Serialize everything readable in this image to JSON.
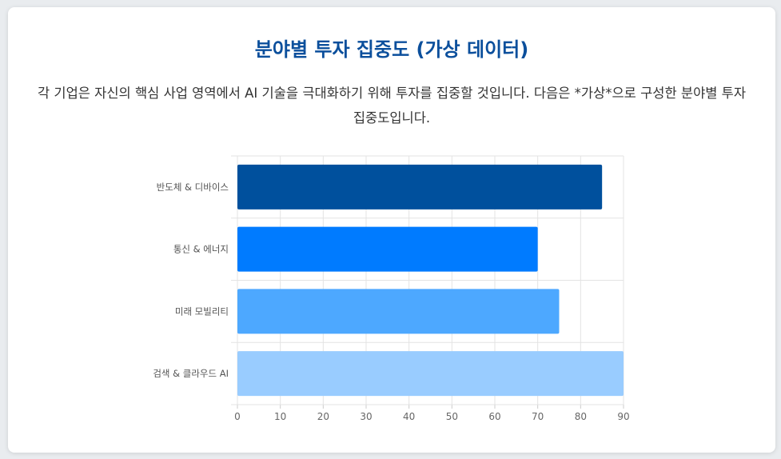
{
  "page": {
    "title": "분야별 투자 집중도 (가상 데이터)",
    "description": "각 기업은 자신의 핵심 사업 영역에서 AI 기술을 극대화하기 위해 투자를 집중할 것입니다. 다음은 *가상*으로 구성한 분야별 투자 집중도입니다."
  },
  "chart_data": {
    "type": "bar",
    "orientation": "horizontal",
    "categories": [
      "반도체 & 디바이스",
      "통신 & 에너지",
      "미래 모빌리티",
      "검색 & 클라우드 AI"
    ],
    "values": [
      85,
      70,
      75,
      90
    ],
    "colors": [
      "#00509d",
      "#007bff",
      "#4da8ff",
      "#99ccff"
    ],
    "xlim": [
      0,
      90
    ],
    "xticks": [
      0,
      10,
      20,
      30,
      40,
      50,
      60,
      70,
      80,
      90
    ],
    "grid": true,
    "title": "",
    "xlabel": "",
    "ylabel": ""
  }
}
